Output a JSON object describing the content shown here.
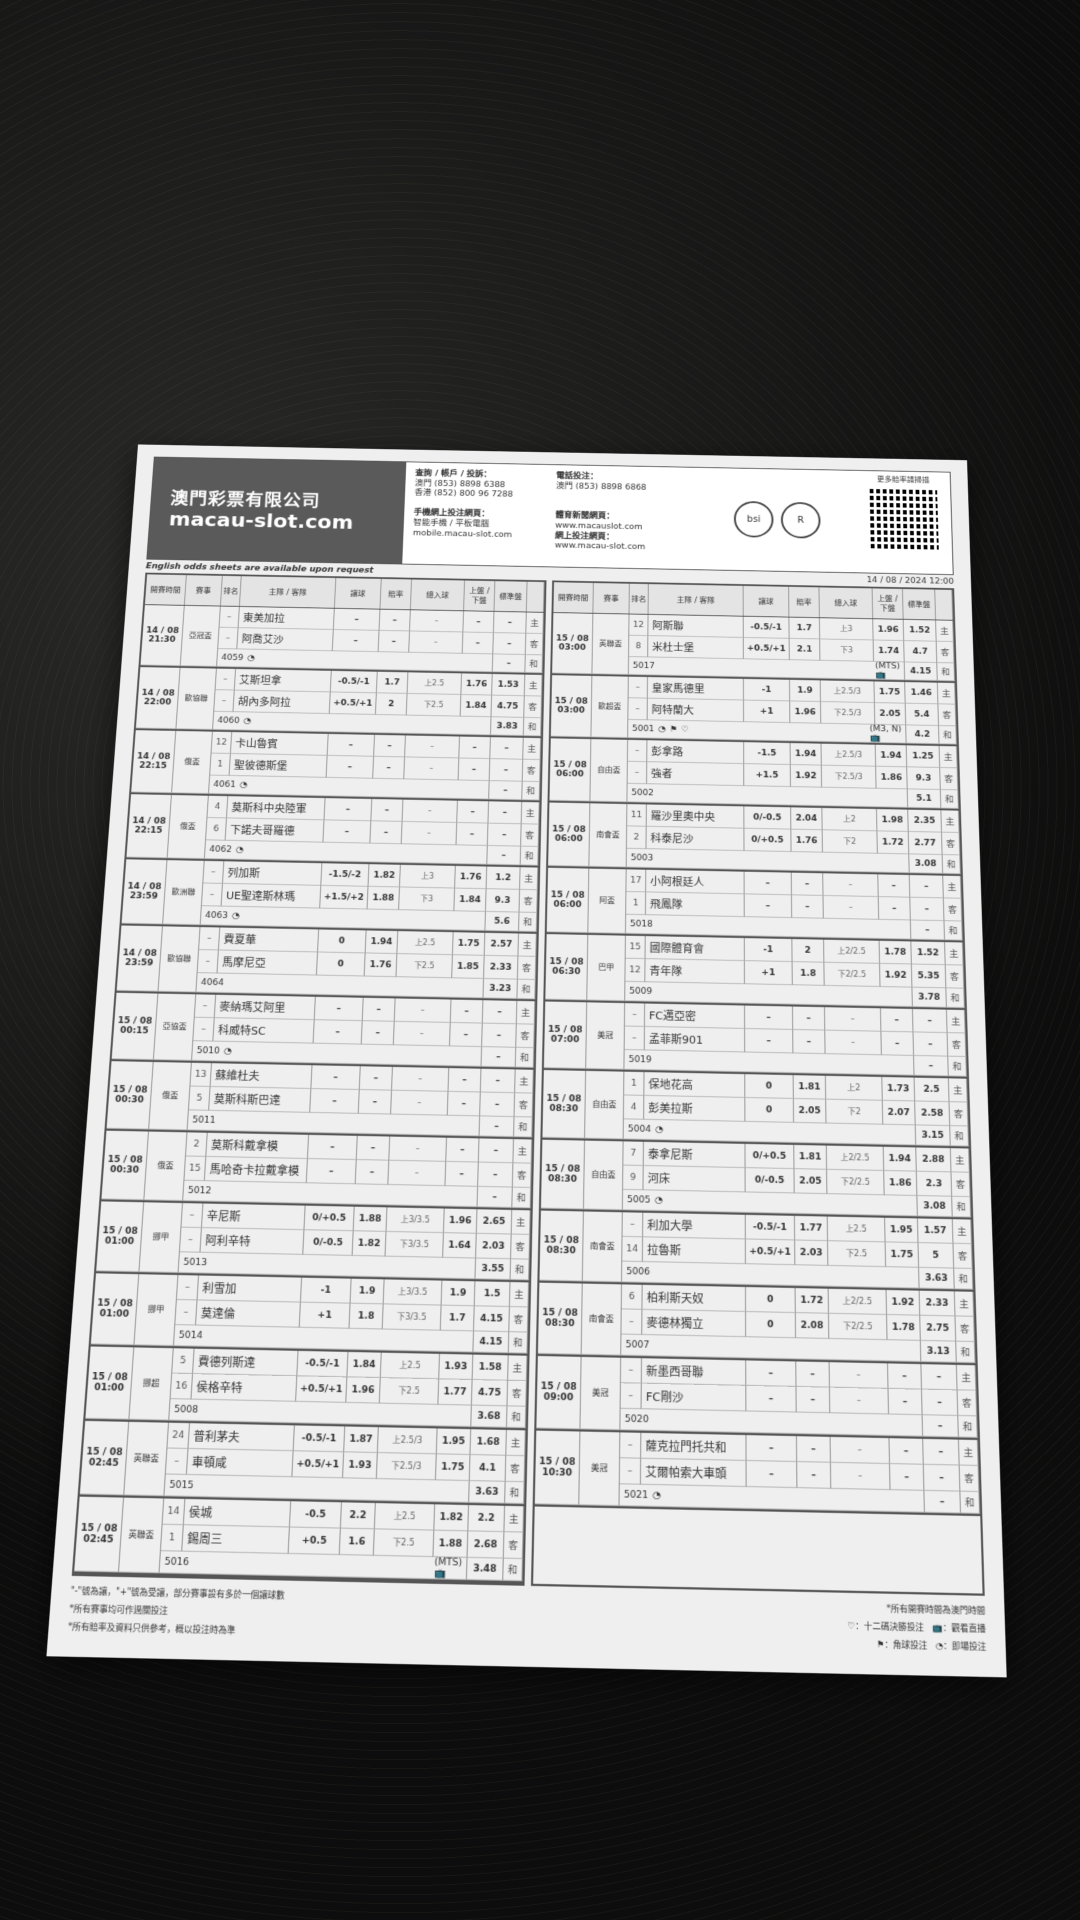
{
  "header": {
    "company_cn": "澳門彩票有限公司",
    "company_en": "macau-slot.com",
    "enquiry_label": "查詢 / 帳戶 / 投訴：",
    "enquiry_macau": "澳門 (853) 8898 6388",
    "enquiry_hk": "香港 (852) 800 96 7288",
    "mobile_label": "手機網上投注網頁：",
    "mobile_devices": "智能手機 / 平板電腦",
    "mobile_url": "mobile.macau-slot.com",
    "phone_label": "電話投注：",
    "phone_macau": "澳門 (853) 8898 6868",
    "news_label": "體育新聞網頁：",
    "news_url": "www.macauslot.com",
    "online_label": "網上投注網頁：",
    "online_url": "www.macau-slot.com",
    "cert_1": "bsi",
    "cert_2": "R",
    "qr_label": "更多賠率請掃描",
    "datetime": "14 / 08 / 2024 12:00",
    "english_note": "English odds sheets are available upon request"
  },
  "columns": {
    "time": "開賽時間",
    "league": "賽事",
    "rank": "排名",
    "teams": "主隊 / 客隊",
    "hcp": "讓球",
    "hcp_odds": "賠率",
    "ou": "總入球",
    "ou_odds": "上盤 / 下盤",
    "std": "標準盤"
  },
  "labels": {
    "home": "主",
    "away": "客",
    "draw": "和"
  },
  "left_matches": [
    {
      "date": "14 / 08",
      "time": "21:30",
      "league": "亞冠盃",
      "home": {
        "rank": "–",
        "name": "東美加拉",
        "hcp": "–",
        "odds": "–",
        "ou": "–",
        "ou_odds": "–",
        "std": "–"
      },
      "away": {
        "rank": "–",
        "name": "阿喬艾沙",
        "hcp": "–",
        "odds": "–",
        "ou": "–",
        "ou_odds": "–",
        "std": "–"
      },
      "draw": "–",
      "code": "4059",
      "icons": "inplay-icon",
      "tv": ""
    },
    {
      "date": "14 / 08",
      "time": "22:00",
      "league": "歐協聯",
      "home": {
        "rank": "–",
        "name": "艾斯坦拿",
        "hcp": "-0.5/-1",
        "odds": "1.7",
        "ou": "上2.5",
        "ou_odds": "1.76",
        "std": "1.53"
      },
      "away": {
        "rank": "–",
        "name": "胡內多阿拉",
        "hcp": "+0.5/+1",
        "odds": "2",
        "ou": "下2.5",
        "ou_odds": "1.84",
        "std": "4.75"
      },
      "draw": "3.83",
      "code": "4060",
      "icons": "inplay-icon",
      "tv": ""
    },
    {
      "date": "14 / 08",
      "time": "22:15",
      "league": "俄盃",
      "home": {
        "rank": "12",
        "name": "卡山魯賓",
        "hcp": "–",
        "odds": "–",
        "ou": "–",
        "ou_odds": "–",
        "std": "–"
      },
      "away": {
        "rank": "1",
        "name": "聖彼德斯堡",
        "hcp": "–",
        "odds": "–",
        "ou": "–",
        "ou_odds": "–",
        "std": "–"
      },
      "draw": "–",
      "code": "4061",
      "icons": "inplay-icon",
      "tv": ""
    },
    {
      "date": "14 / 08",
      "time": "22:15",
      "league": "俄盃",
      "home": {
        "rank": "4",
        "name": "莫斯科中央陸軍",
        "hcp": "–",
        "odds": "–",
        "ou": "–",
        "ou_odds": "–",
        "std": "–"
      },
      "away": {
        "rank": "6",
        "name": "下諾夫哥羅德",
        "hcp": "–",
        "odds": "–",
        "ou": "–",
        "ou_odds": "–",
        "std": "–"
      },
      "draw": "–",
      "code": "4062",
      "icons": "inplay-icon",
      "tv": ""
    },
    {
      "date": "14 / 08",
      "time": "23:59",
      "league": "歐洲聯",
      "home": {
        "rank": "–",
        "name": "列加斯",
        "hcp": "-1.5/-2",
        "odds": "1.82",
        "ou": "上3",
        "ou_odds": "1.76",
        "std": "1.2"
      },
      "away": {
        "rank": "–",
        "name": "UE聖達斯林瑪",
        "hcp": "+1.5/+2",
        "odds": "1.88",
        "ou": "下3",
        "ou_odds": "1.84",
        "std": "9.3"
      },
      "draw": "5.6",
      "code": "4063",
      "icons": "inplay-icon",
      "tv": ""
    },
    {
      "date": "14 / 08",
      "time": "23:59",
      "league": "歐協聯",
      "home": {
        "rank": "–",
        "name": "費夏華",
        "hcp": "0",
        "odds": "1.94",
        "ou": "上2.5",
        "ou_odds": "1.75",
        "std": "2.57"
      },
      "away": {
        "rank": "–",
        "name": "馬摩尼亞",
        "hcp": "0",
        "odds": "1.76",
        "ou": "下2.5",
        "ou_odds": "1.85",
        "std": "2.33"
      },
      "draw": "3.23",
      "code": "4064",
      "icons": "",
      "tv": ""
    },
    {
      "date": "15 / 08",
      "time": "00:15",
      "league": "亞協盃",
      "home": {
        "rank": "–",
        "name": "麥納瑪艾阿里",
        "hcp": "–",
        "odds": "–",
        "ou": "–",
        "ou_odds": "–",
        "std": "–"
      },
      "away": {
        "rank": "–",
        "name": "科威特SC",
        "hcp": "–",
        "odds": "–",
        "ou": "–",
        "ou_odds": "–",
        "std": "–"
      },
      "draw": "–",
      "code": "5010",
      "icons": "inplay-icon",
      "tv": ""
    },
    {
      "date": "15 / 08",
      "time": "00:30",
      "league": "俄盃",
      "home": {
        "rank": "13",
        "name": "蘇維杜夫",
        "hcp": "–",
        "odds": "–",
        "ou": "–",
        "ou_odds": "–",
        "std": "–"
      },
      "away": {
        "rank": "5",
        "name": "莫斯科斯巴達",
        "hcp": "–",
        "odds": "–",
        "ou": "–",
        "ou_odds": "–",
        "std": "–"
      },
      "draw": "–",
      "code": "5011",
      "icons": "",
      "tv": ""
    },
    {
      "date": "15 / 08",
      "time": "00:30",
      "league": "俄盃",
      "home": {
        "rank": "2",
        "name": "莫斯科戴拿模",
        "hcp": "–",
        "odds": "–",
        "ou": "–",
        "ou_odds": "–",
        "std": "–"
      },
      "away": {
        "rank": "15",
        "name": "馬哈奇卡拉戴拿模",
        "hcp": "–",
        "odds": "–",
        "ou": "–",
        "ou_odds": "–",
        "std": "–"
      },
      "draw": "–",
      "code": "5012",
      "icons": "",
      "tv": ""
    },
    {
      "date": "15 / 08",
      "time": "01:00",
      "league": "挪甲",
      "home": {
        "rank": "–",
        "name": "辛尼斯",
        "hcp": "0/+0.5",
        "odds": "1.88",
        "ou": "上3/3.5",
        "ou_odds": "1.96",
        "std": "2.65"
      },
      "away": {
        "rank": "–",
        "name": "阿利辛特",
        "hcp": "0/-0.5",
        "odds": "1.82",
        "ou": "下3/3.5",
        "ou_odds": "1.64",
        "std": "2.03"
      },
      "draw": "3.55",
      "code": "5013",
      "icons": "",
      "tv": ""
    },
    {
      "date": "15 / 08",
      "time": "01:00",
      "league": "挪甲",
      "home": {
        "rank": "–",
        "name": "利雪加",
        "hcp": "-1",
        "odds": "1.9",
        "ou": "上3/3.5",
        "ou_odds": "1.9",
        "std": "1.5"
      },
      "away": {
        "rank": "–",
        "name": "莫達倫",
        "hcp": "+1",
        "odds": "1.8",
        "ou": "下3/3.5",
        "ou_odds": "1.7",
        "std": "4.15"
      },
      "draw": "4.15",
      "code": "5014",
      "icons": "",
      "tv": ""
    },
    {
      "date": "15 / 08",
      "time": "01:00",
      "league": "挪超",
      "home": {
        "rank": "5",
        "name": "費德列斯達",
        "hcp": "-0.5/-1",
        "odds": "1.84",
        "ou": "上2.5",
        "ou_odds": "1.93",
        "std": "1.58"
      },
      "away": {
        "rank": "16",
        "name": "侯格辛特",
        "hcp": "+0.5/+1",
        "odds": "1.96",
        "ou": "下2.5",
        "ou_odds": "1.77",
        "std": "4.75"
      },
      "draw": "3.68",
      "code": "5008",
      "icons": "",
      "tv": ""
    },
    {
      "date": "15 / 08",
      "time": "02:45",
      "league": "英聯盃",
      "home": {
        "rank": "24",
        "name": "普利茅夫",
        "hcp": "-0.5/-1",
        "odds": "1.87",
        "ou": "上2.5/3",
        "ou_odds": "1.95",
        "std": "1.68"
      },
      "away": {
        "rank": "–",
        "name": "車頓咸",
        "hcp": "+0.5/+1",
        "odds": "1.93",
        "ou": "下2.5/3",
        "ou_odds": "1.75",
        "std": "4.1"
      },
      "draw": "3.63",
      "code": "5015",
      "icons": "",
      "tv": ""
    },
    {
      "date": "15 / 08",
      "time": "02:45",
      "league": "英聯盃",
      "home": {
        "rank": "14",
        "name": "侯城",
        "hcp": "-0.5",
        "odds": "2.2",
        "ou": "上2.5",
        "ou_odds": "1.82",
        "std": "2.2"
      },
      "away": {
        "rank": "1",
        "name": "錫周三",
        "hcp": "+0.5",
        "odds": "1.6",
        "ou": "下2.5",
        "ou_odds": "1.88",
        "std": "2.68"
      },
      "draw": "3.48",
      "code": "5016",
      "icons": "",
      "tv": "(MTS)"
    }
  ],
  "right_matches": [
    {
      "date": "15 / 08",
      "time": "03:00",
      "league": "英聯盃",
      "home": {
        "rank": "12",
        "name": "阿斯聯",
        "hcp": "-0.5/-1",
        "odds": "1.7",
        "ou": "上3",
        "ou_odds": "1.96",
        "std": "1.52"
      },
      "away": {
        "rank": "8",
        "name": "米杜士堡",
        "hcp": "+0.5/+1",
        "odds": "2.1",
        "ou": "下3",
        "ou_odds": "1.74",
        "std": "4.7"
      },
      "draw": "4.15",
      "code": "5017",
      "icons": "",
      "tv": "(MTS)"
    },
    {
      "date": "15 / 08",
      "time": "03:00",
      "league": "歐超盃",
      "home": {
        "rank": "–",
        "name": "皇家馬德里",
        "hcp": "-1",
        "odds": "1.9",
        "ou": "上2.5/3",
        "ou_odds": "1.75",
        "std": "1.46"
      },
      "away": {
        "rank": "–",
        "name": "阿特蘭大",
        "hcp": "+1",
        "odds": "1.96",
        "ou": "下2.5/3",
        "ou_odds": "2.05",
        "std": "5.4"
      },
      "draw": "4.2",
      "code": "5001",
      "icons": "inplay-icon corner-icon penalty-icon",
      "tv": "(M3, N)"
    },
    {
      "date": "15 / 08",
      "time": "06:00",
      "league": "自由盃",
      "home": {
        "rank": "–",
        "name": "彭拿路",
        "hcp": "-1.5",
        "odds": "1.94",
        "ou": "上2.5/3",
        "ou_odds": "1.94",
        "std": "1.25"
      },
      "away": {
        "rank": "–",
        "name": "強者",
        "hcp": "+1.5",
        "odds": "1.92",
        "ou": "下2.5/3",
        "ou_odds": "1.86",
        "std": "9.3"
      },
      "draw": "5.1",
      "code": "5002",
      "icons": "",
      "tv": ""
    },
    {
      "date": "15 / 08",
      "time": "06:00",
      "league": "南會盃",
      "home": {
        "rank": "11",
        "name": "羅沙里奧中央",
        "hcp": "0/-0.5",
        "odds": "2.04",
        "ou": "上2",
        "ou_odds": "1.98",
        "std": "2.35"
      },
      "away": {
        "rank": "2",
        "name": "科泰尼沙",
        "hcp": "0/+0.5",
        "odds": "1.76",
        "ou": "下2",
        "ou_odds": "1.72",
        "std": "2.77"
      },
      "draw": "3.08",
      "code": "5003",
      "icons": "",
      "tv": ""
    },
    {
      "date": "15 / 08",
      "time": "06:00",
      "league": "阿盃",
      "home": {
        "rank": "17",
        "name": "小阿根廷人",
        "hcp": "–",
        "odds": "–",
        "ou": "–",
        "ou_odds": "–",
        "std": "–"
      },
      "away": {
        "rank": "1",
        "name": "飛鳳隊",
        "hcp": "–",
        "odds": "–",
        "ou": "–",
        "ou_odds": "–",
        "std": "–"
      },
      "draw": "–",
      "code": "5018",
      "icons": "",
      "tv": ""
    },
    {
      "date": "15 / 08",
      "time": "06:30",
      "league": "巴甲",
      "home": {
        "rank": "15",
        "name": "國際體育會",
        "hcp": "-1",
        "odds": "2",
        "ou": "上2/2.5",
        "ou_odds": "1.78",
        "std": "1.52"
      },
      "away": {
        "rank": "12",
        "name": "青年隊",
        "hcp": "+1",
        "odds": "1.8",
        "ou": "下2/2.5",
        "ou_odds": "1.92",
        "std": "5.35"
      },
      "draw": "3.78",
      "code": "5009",
      "icons": "",
      "tv": ""
    },
    {
      "date": "15 / 08",
      "time": "07:00",
      "league": "美冠",
      "home": {
        "rank": "–",
        "name": "FC邁亞密",
        "hcp": "–",
        "odds": "–",
        "ou": "–",
        "ou_odds": "–",
        "std": "–"
      },
      "away": {
        "rank": "–",
        "name": "孟菲斯901",
        "hcp": "–",
        "odds": "–",
        "ou": "–",
        "ou_odds": "–",
        "std": "–"
      },
      "draw": "–",
      "code": "5019",
      "icons": "",
      "tv": ""
    },
    {
      "date": "15 / 08",
      "time": "08:30",
      "league": "自由盃",
      "home": {
        "rank": "1",
        "name": "保地花高",
        "hcp": "0",
        "odds": "1.81",
        "ou": "上2",
        "ou_odds": "1.73",
        "std": "2.5"
      },
      "away": {
        "rank": "4",
        "name": "彭美拉斯",
        "hcp": "0",
        "odds": "2.05",
        "ou": "下2",
        "ou_odds": "2.07",
        "std": "2.58"
      },
      "draw": "3.15",
      "code": "5004",
      "icons": "inplay-icon",
      "tv": ""
    },
    {
      "date": "15 / 08",
      "time": "08:30",
      "league": "自由盃",
      "home": {
        "rank": "7",
        "name": "泰拿尼斯",
        "hcp": "0/+0.5",
        "odds": "1.81",
        "ou": "上2/2.5",
        "ou_odds": "1.94",
        "std": "2.88"
      },
      "away": {
        "rank": "9",
        "name": "河床",
        "hcp": "0/-0.5",
        "odds": "2.05",
        "ou": "下2/2.5",
        "ou_odds": "1.86",
        "std": "2.3"
      },
      "draw": "3.08",
      "code": "5005",
      "icons": "inplay-icon",
      "tv": ""
    },
    {
      "date": "15 / 08",
      "time": "08:30",
      "league": "南會盃",
      "home": {
        "rank": "–",
        "name": "利加大學",
        "hcp": "-0.5/-1",
        "odds": "1.77",
        "ou": "上2.5",
        "ou_odds": "1.95",
        "std": "1.57"
      },
      "away": {
        "rank": "14",
        "name": "拉魯斯",
        "hcp": "+0.5/+1",
        "odds": "2.03",
        "ou": "下2.5",
        "ou_odds": "1.75",
        "std": "5"
      },
      "draw": "3.63",
      "code": "5006",
      "icons": "",
      "tv": ""
    },
    {
      "date": "15 / 08",
      "time": "08:30",
      "league": "南會盃",
      "home": {
        "rank": "6",
        "name": "柏利斯天奴",
        "hcp": "0",
        "odds": "1.72",
        "ou": "上2/2.5",
        "ou_odds": "1.92",
        "std": "2.33"
      },
      "away": {
        "rank": "–",
        "name": "麥德林獨立",
        "hcp": "0",
        "odds": "2.08",
        "ou": "下2/2.5",
        "ou_odds": "1.78",
        "std": "2.75"
      },
      "draw": "3.13",
      "code": "5007",
      "icons": "",
      "tv": ""
    },
    {
      "date": "15 / 08",
      "time": "09:00",
      "league": "美冠",
      "home": {
        "rank": "–",
        "name": "新墨西哥聯",
        "hcp": "–",
        "odds": "–",
        "ou": "–",
        "ou_odds": "–",
        "std": "–"
      },
      "away": {
        "rank": "–",
        "name": "FC剛沙",
        "hcp": "–",
        "odds": "–",
        "ou": "–",
        "ou_odds": "–",
        "std": "–"
      },
      "draw": "–",
      "code": "5020",
      "icons": "",
      "tv": ""
    },
    {
      "date": "15 / 08",
      "time": "10:30",
      "league": "美冠",
      "home": {
        "rank": "–",
        "name": "薩克拉門托共和",
        "hcp": "–",
        "odds": "–",
        "ou": "–",
        "ou_odds": "–",
        "std": "–"
      },
      "away": {
        "rank": "–",
        "name": "艾爾帕索大車頭",
        "hcp": "–",
        "odds": "–",
        "ou": "–",
        "ou_odds": "–",
        "std": "–"
      },
      "draw": "–",
      "code": "5021",
      "icons": "inplay-icon",
      "tv": ""
    }
  ],
  "notes": {
    "note_1": "\"-\"號為讓，\"+\"號為受讓，部分賽事設有多於一個讓球數",
    "note_2": "*所有賽事均可作過關投注",
    "note_3": "*所有賠率及資料只供參考，概以投注時為準",
    "note_4": "*所有開賽時間為澳門時間",
    "legend_penalty": "：十二碼決勝投注",
    "legend_corner": "：角球投注",
    "legend_tv": "：觀看直播",
    "legend_inplay": "：即場投注"
  }
}
